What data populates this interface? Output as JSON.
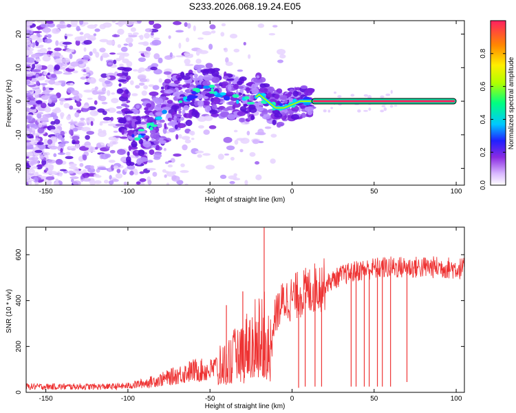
{
  "chart_data": [
    {
      "type": "heatmap",
      "title": "S233.2026.068.19.24.E05",
      "xlabel": "Height of straight line (km)",
      "ylabel": "Frequency (Hz)",
      "xlim": [
        -162,
        105
      ],
      "ylim": [
        -25,
        24
      ],
      "x_ticks": [
        -150,
        -100,
        -50,
        0,
        50,
        100
      ],
      "y_ticks": [
        -20,
        -10,
        0,
        10,
        20
      ],
      "colorbar": {
        "label": "Normalized spectral amplitude",
        "range": [
          0,
          1
        ],
        "ticks": [
          0.0,
          0.2,
          0.4,
          0.6,
          0.8
        ],
        "colors": [
          "#ffffff",
          "#d9b8ff",
          "#8a2be2",
          "#2020ff",
          "#00c8ff",
          "#00ff80",
          "#b0ff00",
          "#ffee00",
          "#ff8800",
          "#ff2060"
        ]
      },
      "ridge": {
        "description": "dominant spectral component",
        "points": [
          [
            -100,
            -12
          ],
          [
            -90,
            -9
          ],
          [
            -80,
            -5
          ],
          [
            -75,
            -2
          ],
          [
            -70,
            0
          ],
          [
            -60,
            2
          ],
          [
            -55,
            4
          ],
          [
            -50,
            4
          ],
          [
            -45,
            2
          ],
          [
            -35,
            1
          ],
          [
            -25,
            0
          ],
          [
            -20,
            2
          ],
          [
            -15,
            0
          ],
          [
            -10,
            -2
          ],
          [
            -5,
            -2
          ],
          [
            0,
            -1
          ],
          [
            5,
            0
          ],
          [
            10,
            0
          ],
          [
            15,
            0
          ],
          [
            100,
            0
          ]
        ]
      },
      "line_band": {
        "x_range": [
          12,
          100
        ],
        "frequency": 0
      }
    },
    {
      "type": "line",
      "xlabel": "Height of straight line (km)",
      "ylabel": "SNR (10 * v/v)",
      "xlim": [
        -162,
        105
      ],
      "ylim": [
        0,
        720
      ],
      "x_ticks": [
        -150,
        -100,
        -50,
        0,
        50,
        100
      ],
      "y_ticks": [
        0,
        200,
        400,
        600
      ],
      "series_color": "#ee3333",
      "envelope": {
        "x": [
          -162,
          -130,
          -110,
          -100,
          -90,
          -80,
          -70,
          -60,
          -50,
          -40,
          -30,
          -25,
          -20,
          -17,
          -15,
          -10,
          -5,
          0,
          5,
          10,
          15,
          20,
          25,
          30,
          40,
          50,
          60,
          70,
          80,
          90,
          100,
          105
        ],
        "y": [
          25,
          25,
          25,
          28,
          40,
          55,
          75,
          95,
          95,
          130,
          190,
          220,
          260,
          280,
          170,
          340,
          400,
          410,
          430,
          440,
          460,
          470,
          490,
          510,
          530,
          540,
          545,
          545,
          545,
          545,
          540,
          540
        ]
      },
      "spikes": [
        {
          "x": -17,
          "y": 718
        },
        {
          "x": -40,
          "y": 380
        },
        {
          "x": -30,
          "y": 440
        }
      ],
      "dropouts": [
        {
          "x": 4,
          "y": 20
        },
        {
          "x": 8,
          "y": 25
        },
        {
          "x": 14,
          "y": 25
        },
        {
          "x": 18,
          "y": 25
        },
        {
          "x": 36,
          "y": 25
        },
        {
          "x": 39,
          "y": 25
        },
        {
          "x": 44,
          "y": 25
        },
        {
          "x": 47,
          "y": 25
        },
        {
          "x": 52,
          "y": 25
        },
        {
          "x": 55,
          "y": 25
        },
        {
          "x": 60,
          "y": 25
        },
        {
          "x": 70,
          "y": 45
        }
      ]
    }
  ]
}
